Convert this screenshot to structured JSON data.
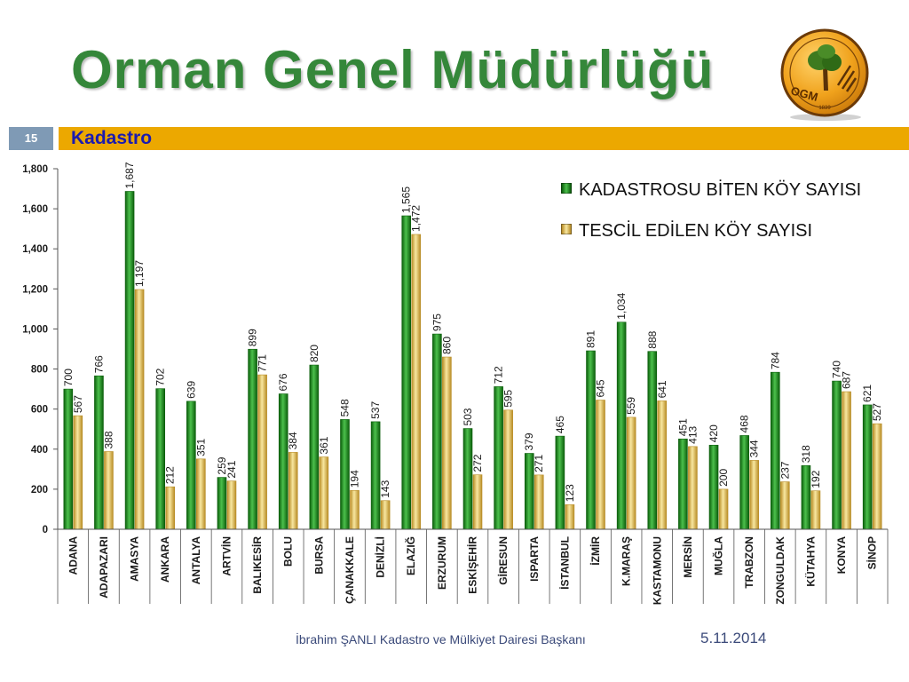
{
  "slide": {
    "title": "Orman Genel Müdürlüğü",
    "number": "15",
    "section": "Kadastro",
    "footer_author": "İbrahim ŞANLI Kadastro ve Mülkiyet Dairesi Başkanı",
    "date": "5.11.2014"
  },
  "logo": {
    "icon": "forest-tree-emblem",
    "text": "OGM",
    "year": "1839"
  },
  "colors": {
    "title": "#35873a",
    "band": "#eca800",
    "section_text": "#1b1bb0",
    "slide_number_bg": "#7f9ab5",
    "footer_text": "#3b4a7a"
  },
  "chart_data": {
    "type": "bar",
    "title": "",
    "xlabel": "",
    "ylabel": "",
    "categories": [
      "ADANA",
      "ADAPAZARI",
      "AMASYA",
      "ANKARA",
      "ANTALYA",
      "ARTVİN",
      "BALIKESİR",
      "BOLU",
      "BURSA",
      "ÇANAKKALE",
      "DENİZLİ",
      "ELAZIĞ",
      "ERZURUM",
      "ESKİŞEHİR",
      "GİRESUN",
      "ISPARTA",
      "İSTANBUL",
      "İZMİR",
      "K.MARAŞ",
      "KASTAMONU",
      "MERSİN",
      "MUĞLA",
      "TRABZON",
      "ZONGULDAK",
      "KÜTAHYA",
      "KONYA",
      "SİNOP"
    ],
    "series": [
      {
        "name": "KADASTROSU BİTEN KÖY SAYISI",
        "color": "#0b5e0b",
        "highlight": "#4cc04c",
        "values": [
          700,
          766,
          1687,
          702,
          639,
          259,
          899,
          676,
          820,
          548,
          537,
          1565,
          975,
          503,
          712,
          379,
          465,
          891,
          1034,
          888,
          451,
          420,
          468,
          784,
          318,
          740,
          621
        ]
      },
      {
        "name": "TESCİL EDİLEN KÖY SAYISI",
        "color": "#b88c25",
        "highlight": "#f8e7a0",
        "values": [
          567,
          388,
          1197,
          212,
          351,
          241,
          771,
          384,
          361,
          194,
          143,
          1472,
          860,
          272,
          595,
          271,
          123,
          645,
          559,
          641,
          413,
          200,
          344,
          237,
          192,
          687,
          527
        ]
      }
    ],
    "ylim": [
      0,
      1800
    ],
    "yticks": [
      0,
      200,
      400,
      600,
      800,
      1000,
      1200,
      1400,
      1600,
      1800
    ],
    "grid": false,
    "legend": "top-right",
    "data_labels": true
  }
}
